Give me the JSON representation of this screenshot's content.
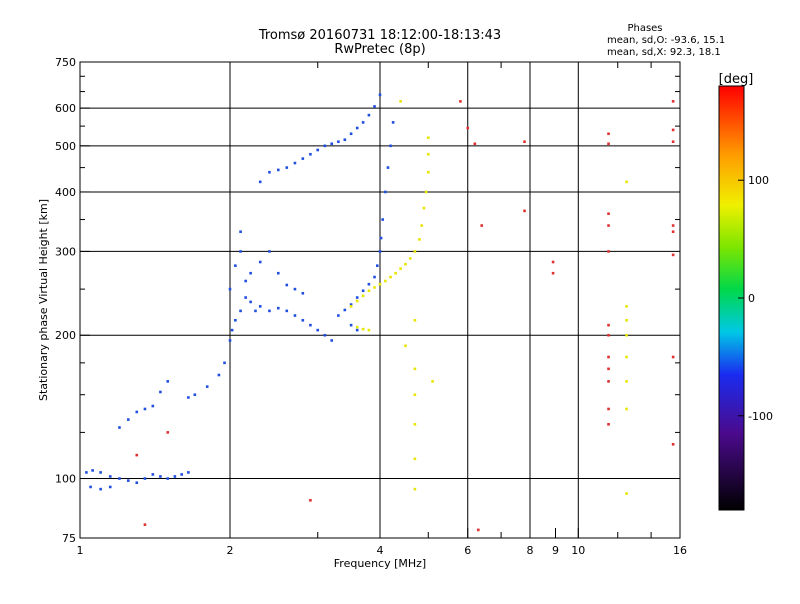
{
  "chart_data": {
    "type": "scatter",
    "title": "Tromsø 20160731 18:12:00-18:13:43",
    "subtitle": "RwPretec (8p)",
    "xlabel": "Frequency [MHz]",
    "ylabel": "Stationary phase Virtual Height [km]",
    "x_scale": "log",
    "y_scale": "log",
    "xlim": [
      1,
      16
    ],
    "ylim": [
      75,
      750
    ],
    "x_ticks": [
      1,
      2,
      4,
      6,
      8,
      9,
      10,
      16
    ],
    "x_tick_labels": [
      "1",
      "2",
      "4",
      "6",
      "8",
      "9",
      "10",
      "16"
    ],
    "x_major_gridlines": [
      2,
      4,
      6,
      8,
      10
    ],
    "y_ticks": [
      75,
      100,
      200,
      300,
      400,
      500,
      600,
      750
    ],
    "y_gridlines": [
      100,
      200,
      300,
      400,
      500,
      600
    ],
    "grid": true,
    "phase_stats": {
      "header": "Phases",
      "o_line": "mean, sd,O: -93.6, 15.1",
      "x_line": "mean, sd,X:  92.3, 18.1"
    },
    "colorbar": {
      "label": "[deg]",
      "range": [
        -180,
        180
      ],
      "ticks": [
        -100,
        0,
        100
      ],
      "tick_labels": [
        "-100",
        "0",
        "100"
      ]
    },
    "series": [
      {
        "mode": "O",
        "phase_deg": -93.6,
        "color": "#1f4fe0",
        "points": [
          [
            1.03,
            103
          ],
          [
            1.06,
            104
          ],
          [
            1.1,
            103
          ],
          [
            1.15,
            101
          ],
          [
            1.2,
            100
          ],
          [
            1.25,
            99
          ],
          [
            1.3,
            98
          ],
          [
            1.35,
            100
          ],
          [
            1.4,
            102
          ],
          [
            1.45,
            101
          ],
          [
            1.5,
            100
          ],
          [
            1.55,
            101
          ],
          [
            1.6,
            102
          ],
          [
            1.65,
            103
          ],
          [
            1.05,
            96
          ],
          [
            1.1,
            95
          ],
          [
            1.15,
            96
          ],
          [
            1.2,
            128
          ],
          [
            1.25,
            133
          ],
          [
            1.3,
            138
          ],
          [
            1.35,
            140
          ],
          [
            1.4,
            142
          ],
          [
            1.45,
            152
          ],
          [
            1.5,
            160
          ],
          [
            1.65,
            148
          ],
          [
            1.7,
            150
          ],
          [
            1.8,
            156
          ],
          [
            1.9,
            165
          ],
          [
            1.95,
            175
          ],
          [
            2.0,
            195
          ],
          [
            2.02,
            205
          ],
          [
            2.05,
            215
          ],
          [
            2.1,
            225
          ],
          [
            2.15,
            240
          ],
          [
            2.2,
            235
          ],
          [
            2.25,
            225
          ],
          [
            2.3,
            230
          ],
          [
            2.4,
            225
          ],
          [
            2.5,
            228
          ],
          [
            2.6,
            225
          ],
          [
            2.7,
            220
          ],
          [
            2.8,
            215
          ],
          [
            2.9,
            210
          ],
          [
            3.0,
            205
          ],
          [
            3.1,
            200
          ],
          [
            3.2,
            195
          ],
          [
            2.0,
            250
          ],
          [
            2.05,
            280
          ],
          [
            2.1,
            300
          ],
          [
            2.1,
            330
          ],
          [
            2.15,
            260
          ],
          [
            2.2,
            270
          ],
          [
            2.3,
            285
          ],
          [
            2.4,
            300
          ],
          [
            2.5,
            270
          ],
          [
            2.6,
            255
          ],
          [
            2.7,
            250
          ],
          [
            2.8,
            245
          ],
          [
            2.3,
            420
          ],
          [
            2.4,
            440
          ],
          [
            2.5,
            445
          ],
          [
            2.6,
            450
          ],
          [
            2.7,
            460
          ],
          [
            2.8,
            470
          ],
          [
            2.9,
            480
          ],
          [
            3.0,
            490
          ],
          [
            3.1,
            500
          ],
          [
            3.2,
            505
          ],
          [
            3.3,
            510
          ],
          [
            3.4,
            515
          ],
          [
            3.5,
            530
          ],
          [
            3.6,
            545
          ],
          [
            3.7,
            560
          ],
          [
            3.8,
            580
          ],
          [
            3.9,
            605
          ],
          [
            4.0,
            640
          ],
          [
            3.3,
            220
          ],
          [
            3.4,
            226
          ],
          [
            3.5,
            232
          ],
          [
            3.6,
            240
          ],
          [
            3.7,
            248
          ],
          [
            3.8,
            256
          ],
          [
            3.9,
            265
          ],
          [
            3.95,
            280
          ],
          [
            4.0,
            300
          ],
          [
            4.02,
            320
          ],
          [
            4.05,
            350
          ],
          [
            4.1,
            400
          ],
          [
            4.15,
            450
          ],
          [
            4.2,
            500
          ],
          [
            4.25,
            560
          ],
          [
            3.5,
            210
          ],
          [
            3.6,
            205
          ]
        ]
      },
      {
        "mode": "X",
        "phase_deg": 92.3,
        "color": "#e6e600",
        "points": [
          [
            3.5,
            230
          ],
          [
            3.6,
            236
          ],
          [
            3.7,
            242
          ],
          [
            3.8,
            248
          ],
          [
            3.9,
            252
          ],
          [
            4.0,
            256
          ],
          [
            4.1,
            260
          ],
          [
            4.2,
            265
          ],
          [
            4.3,
            270
          ],
          [
            4.4,
            276
          ],
          [
            4.5,
            282
          ],
          [
            4.6,
            290
          ],
          [
            4.7,
            300
          ],
          [
            4.8,
            318
          ],
          [
            4.85,
            340
          ],
          [
            4.9,
            370
          ],
          [
            4.95,
            400
          ],
          [
            5.0,
            440
          ],
          [
            5.0,
            480
          ],
          [
            5.0,
            520
          ],
          [
            3.6,
            208
          ],
          [
            3.7,
            206
          ],
          [
            3.8,
            205
          ],
          [
            4.7,
            215
          ],
          [
            4.7,
            170
          ],
          [
            4.7,
            150
          ],
          [
            4.7,
            130
          ],
          [
            4.7,
            110
          ],
          [
            4.7,
            95
          ],
          [
            4.5,
            190
          ],
          [
            5.1,
            160
          ],
          [
            4.4,
            620
          ],
          [
            12.5,
            420
          ],
          [
            12.5,
            230
          ],
          [
            12.5,
            215
          ],
          [
            12.5,
            200
          ],
          [
            12.5,
            180
          ],
          [
            12.5,
            160
          ],
          [
            12.5,
            140
          ],
          [
            12.5,
            93
          ]
        ]
      },
      {
        "mode": "scattered",
        "phase_deg": null,
        "color": "#e03030",
        "points": [
          [
            5.8,
            620
          ],
          [
            6.0,
            545
          ],
          [
            6.2,
            505
          ],
          [
            6.4,
            340
          ],
          [
            8.9,
            285
          ],
          [
            8.9,
            270
          ],
          [
            11.5,
            530
          ],
          [
            11.5,
            505
          ],
          [
            11.5,
            360
          ],
          [
            11.5,
            340
          ],
          [
            11.5,
            300
          ],
          [
            11.5,
            210
          ],
          [
            11.5,
            200
          ],
          [
            11.5,
            180
          ],
          [
            11.5,
            170
          ],
          [
            11.5,
            160
          ],
          [
            11.5,
            140
          ],
          [
            11.5,
            130
          ],
          [
            15.5,
            620
          ],
          [
            15.5,
            540
          ],
          [
            15.5,
            510
          ],
          [
            15.5,
            340
          ],
          [
            15.5,
            330
          ],
          [
            15.5,
            295
          ],
          [
            15.5,
            180
          ],
          [
            15.5,
            118
          ],
          [
            2.9,
            90
          ],
          [
            1.5,
            125
          ],
          [
            1.3,
            112
          ],
          [
            1.35,
            80
          ],
          [
            6.3,
            78
          ],
          [
            7.8,
            510
          ],
          [
            7.8,
            365
          ]
        ]
      }
    ]
  }
}
